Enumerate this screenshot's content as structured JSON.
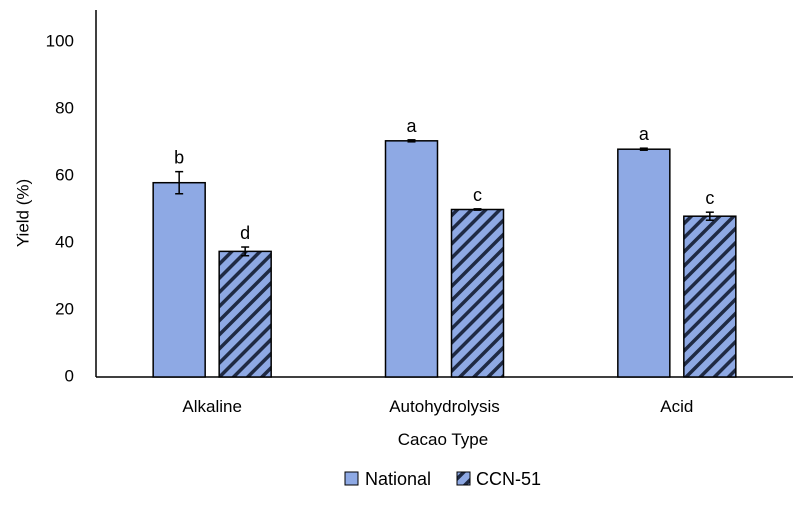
{
  "chart_data": {
    "type": "bar",
    "title": "",
    "xlabel": "Cacao Type",
    "ylabel": "Yield (%)",
    "ylim": [
      0,
      100
    ],
    "yticks": [
      0,
      20,
      40,
      60,
      80,
      100
    ],
    "grid": false,
    "legend_position": "bottom",
    "categories": [
      "Alkaline",
      "Autohydrolysis",
      "Acid"
    ],
    "series": [
      {
        "name": "National",
        "fill": "#8EA9E4",
        "pattern": "solid",
        "values": [
          58,
          70.5,
          68
        ],
        "errors": [
          3.3,
          0.3,
          0.3
        ],
        "sig_labels": [
          "b",
          "a",
          "a"
        ]
      },
      {
        "name": "CCN-51",
        "fill": "#8EA9E4",
        "pattern": "diagonal-stripes",
        "values": [
          37.5,
          50,
          48
        ],
        "errors": [
          1.3,
          0.2,
          1.2
        ],
        "sig_labels": [
          "d",
          "c",
          "c"
        ]
      }
    ],
    "colors": {
      "bar_fill": "#8EA9E4",
      "stripe": "#1F2A44",
      "outline": "#000000"
    }
  }
}
